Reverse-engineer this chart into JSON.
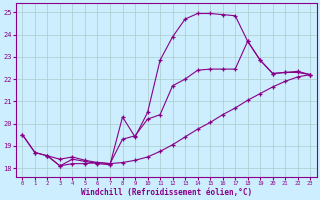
{
  "xlabel": "Windchill (Refroidissement éolien,°C)",
  "background_color": "#cceeff",
  "grid_color": "#aacccc",
  "line_color": "#880088",
  "xlim": [
    -0.5,
    23.5
  ],
  "ylim": [
    17.6,
    25.4
  ],
  "xticks": [
    0,
    1,
    2,
    3,
    4,
    5,
    6,
    7,
    8,
    9,
    10,
    11,
    12,
    13,
    14,
    15,
    16,
    17,
    18,
    19,
    20,
    21,
    22,
    23
  ],
  "yticks": [
    18,
    19,
    20,
    21,
    22,
    23,
    24,
    25
  ],
  "line1_x": [
    0,
    1,
    2,
    3,
    4,
    5,
    6,
    7,
    8,
    9,
    10,
    11,
    12,
    13,
    14,
    15,
    16,
    17,
    18,
    19,
    20,
    21,
    22,
    23
  ],
  "line1_y": [
    19.5,
    18.7,
    18.55,
    18.1,
    18.4,
    18.3,
    18.2,
    18.15,
    20.3,
    19.4,
    20.5,
    22.85,
    23.9,
    24.7,
    24.95,
    24.95,
    24.9,
    24.85,
    23.7,
    22.85,
    22.25,
    22.3,
    22.3,
    22.2
  ],
  "line2_x": [
    0,
    1,
    2,
    3,
    4,
    5,
    6,
    7,
    8,
    9,
    10,
    11,
    12,
    13,
    14,
    15,
    16,
    17,
    18,
    19,
    20,
    21,
    22,
    23
  ],
  "line2_y": [
    19.5,
    18.7,
    18.55,
    18.4,
    18.5,
    18.35,
    18.25,
    18.2,
    19.3,
    19.45,
    20.2,
    20.4,
    21.7,
    22.0,
    22.4,
    22.45,
    22.45,
    22.45,
    23.7,
    22.85,
    22.25,
    22.3,
    22.35,
    22.2
  ],
  "line3_x": [
    2,
    3,
    4,
    5,
    6,
    7,
    8,
    9,
    10,
    11,
    12,
    13,
    14,
    15,
    16,
    17,
    18,
    19,
    20,
    21,
    22,
    23
  ],
  "line3_y": [
    18.55,
    18.1,
    18.2,
    18.2,
    18.25,
    18.2,
    18.25,
    18.35,
    18.5,
    18.75,
    19.05,
    19.4,
    19.75,
    20.05,
    20.4,
    20.7,
    21.05,
    21.35,
    21.65,
    21.9,
    22.1,
    22.2
  ]
}
